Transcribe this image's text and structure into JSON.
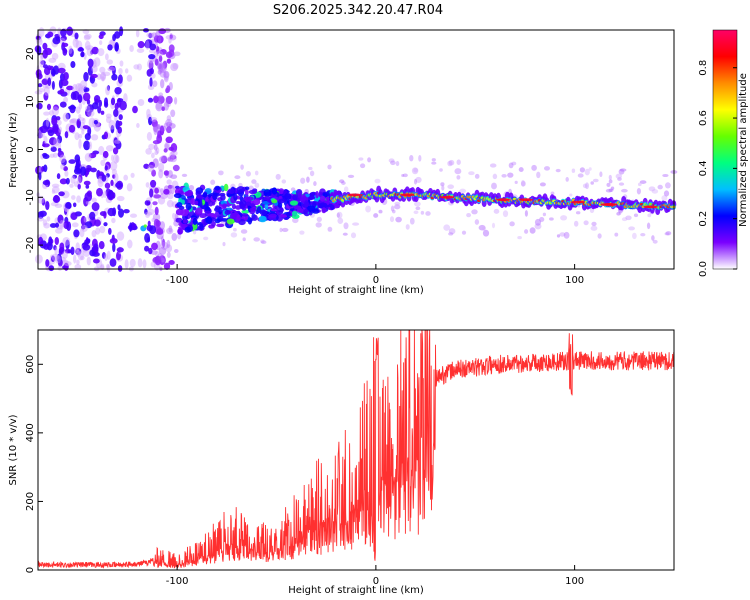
{
  "title": "S206.2025.342.20.47.R04",
  "colorbar": {
    "label": "Normalized spectral amplitude",
    "range": [
      0.0,
      0.95
    ],
    "ticks": [
      "0.0",
      "0.2",
      "0.4",
      "0.6",
      "0.8"
    ],
    "colors": [
      "#ffffff",
      "#7a00ff",
      "#0000ff",
      "#00bfff",
      "#00ff7f",
      "#66ff00",
      "#ffff00",
      "#ff8c00",
      "#ff0000",
      "#ff0066"
    ]
  },
  "chart_data": [
    {
      "type": "heatmap",
      "title": "S206.2025.342.20.47.R04",
      "xlabel": "Height of straight line (km)",
      "ylabel": "Frequency (Hz)",
      "xlim": [
        -170,
        150
      ],
      "ylim": [
        -25,
        25
      ],
      "xticks": [
        "-100",
        "0",
        "100"
      ],
      "yticks": [
        "-20",
        "-10",
        "0",
        "10",
        "20"
      ],
      "colorbar_label": "Normalized spectral amplitude",
      "ridge": {
        "x": [
          -100,
          -80,
          -60,
          -40,
          -20,
          0,
          20,
          40,
          60,
          80,
          100,
          120,
          150
        ],
        "frequency": [
          -12.5,
          -12.0,
          -11.5,
          -11.5,
          -10.5,
          -9.5,
          -9.5,
          -10.0,
          -10.5,
          -11.0,
          -11.0,
          -11.5,
          -12.0
        ]
      }
    },
    {
      "type": "line",
      "xlabel": "Height of straight line (km)",
      "ylabel": "SNR (10 * v/v)",
      "xlim": [
        -170,
        150
      ],
      "ylim": [
        0,
        700
      ],
      "xticks": [
        "-100",
        "0",
        "100"
      ],
      "yticks": [
        "0",
        "200",
        "400",
        "600"
      ],
      "color": "#ff3030",
      "series": [
        {
          "name": "SNR",
          "x": [
            -170,
            -150,
            -130,
            -115,
            -110,
            -100,
            -90,
            -80,
            -70,
            -60,
            -50,
            -40,
            -30,
            -20,
            -10,
            -5,
            0,
            5,
            10,
            15,
            20,
            25,
            30,
            40,
            50,
            60,
            80,
            100,
            120,
            150
          ],
          "y": [
            15,
            15,
            15,
            20,
            40,
            25,
            50,
            100,
            120,
            80,
            100,
            150,
            200,
            240,
            300,
            360,
            300,
            380,
            430,
            470,
            500,
            530,
            560,
            585,
            590,
            600,
            605,
            610,
            610,
            610
          ]
        }
      ]
    }
  ]
}
